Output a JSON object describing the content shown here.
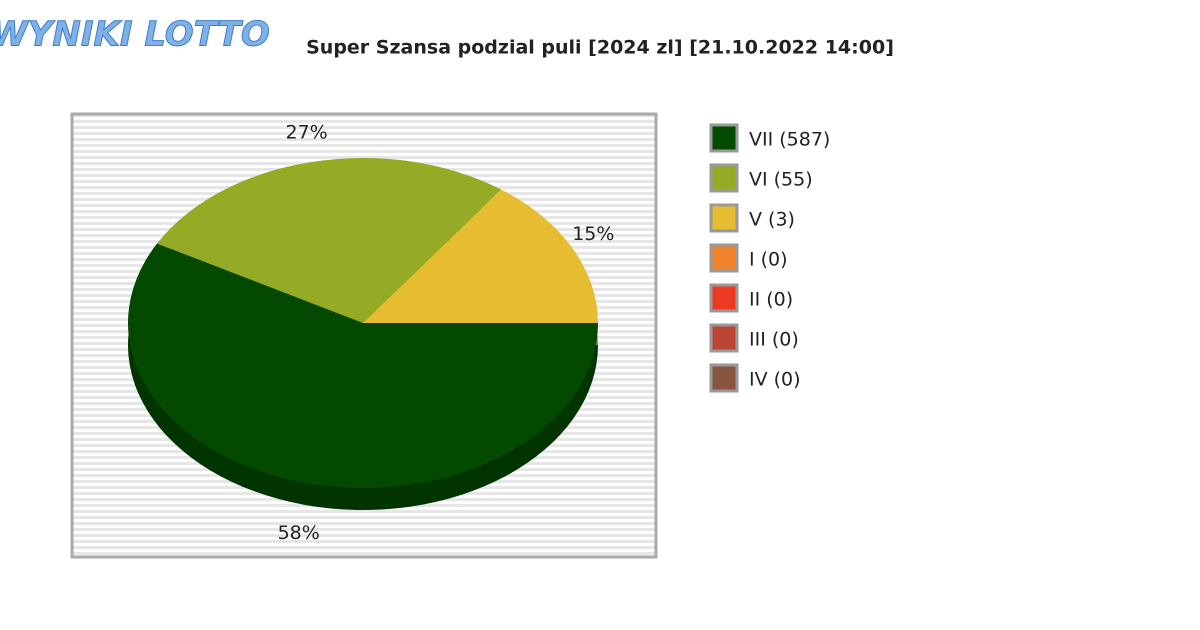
{
  "logo": "WYNIKI LOTTO",
  "chart_data": {
    "type": "pie",
    "title": "Super Szansa podzial puli [2024 zl] [21.10.2022 14:00]",
    "categories": [
      "VII (587)",
      "VI (55)",
      "V (3)",
      "I (0)",
      "II (0)",
      "III (0)",
      "IV (0)"
    ],
    "values": [
      58,
      27,
      15,
      0,
      0,
      0,
      0
    ],
    "value_labels": [
      "58%",
      "27%",
      "15%",
      null,
      null,
      null,
      null
    ],
    "colors": [
      "#034a00",
      "#95aa25",
      "#e6bd30",
      "#f0822a",
      "#ee3a23",
      "#bb4532",
      "#8a5540"
    ]
  }
}
